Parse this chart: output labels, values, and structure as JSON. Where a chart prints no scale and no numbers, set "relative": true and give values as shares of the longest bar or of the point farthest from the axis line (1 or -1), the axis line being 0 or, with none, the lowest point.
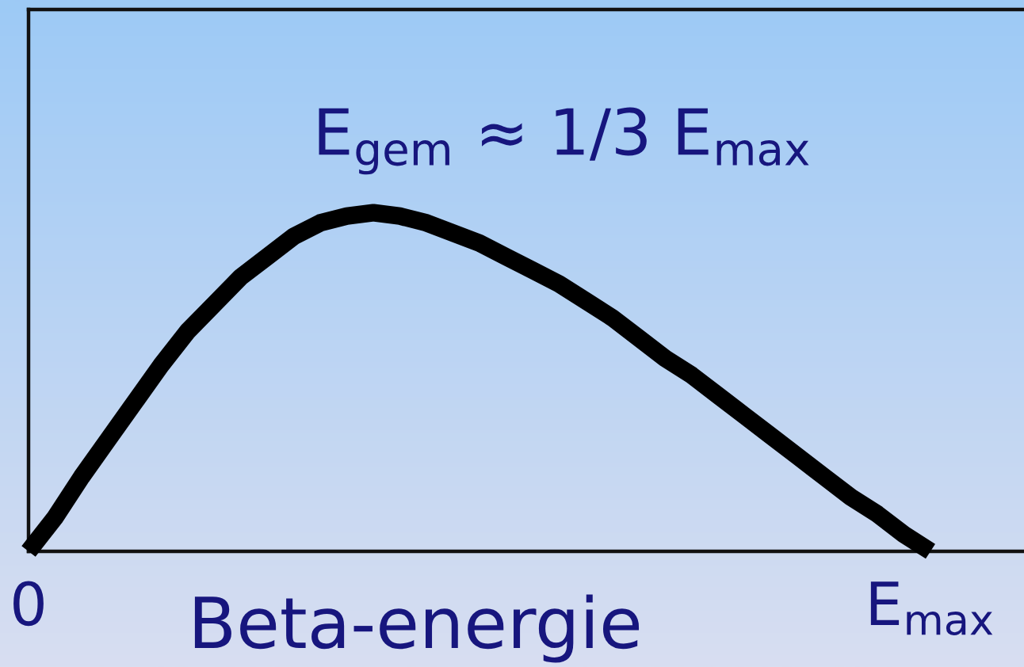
{
  "chart_data": {
    "type": "line",
    "xlabel": "Beta-energie",
    "annotations": [
      "E$_{gem}$ ≈ 1/3 E$_{max}$"
    ],
    "categories": [
      "0",
      null,
      null,
      null,
      null,
      null,
      null,
      null,
      null,
      null,
      null,
      null,
      null,
      null,
      null,
      null,
      null,
      null,
      null,
      null,
      null,
      null,
      null,
      null,
      null,
      null,
      null,
      null,
      null,
      null,
      null,
      null,
      null,
      null,
      "E$_{max}$"
    ],
    "series": [
      {
        "color": "#000000",
        "values": [
          0,
          0.1,
          0.22,
          0.33,
          0.44,
          0.55,
          0.65,
          0.73,
          0.81,
          0.87,
          0.93,
          0.97,
          0.99,
          1,
          0.99,
          0.97,
          0.94,
          0.91,
          0.87,
          0.83,
          0.79,
          0.74,
          0.69,
          0.63,
          0.57,
          0.52,
          0.46,
          0.4,
          0.34,
          0.28,
          0.22,
          0.16,
          0.11,
          0.05,
          0
        ]
      }
    ],
    "relative": true
  }
}
